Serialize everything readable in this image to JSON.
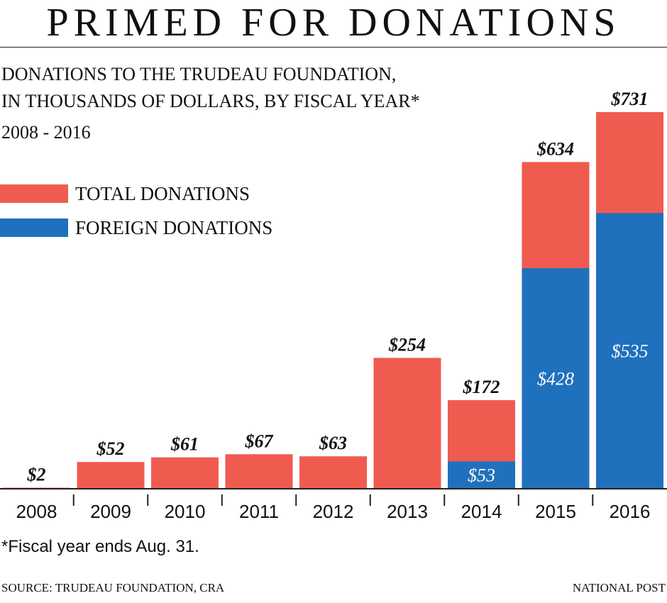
{
  "headline": "PRIMED FOR DONATIONS",
  "subtitle": {
    "line1": "DONATIONS TO THE TRUDEAU FOUNDATION,",
    "line2": "IN THOUSANDS OF DOLLARS, BY FISCAL YEAR*",
    "line3": "2008 - 2016"
  },
  "legend": {
    "total_label": "TOTAL DONATIONS",
    "foreign_label": "FOREIGN DONATIONS"
  },
  "colors": {
    "total": "#f05b50",
    "foreign": "#1f70bd",
    "axis": "#222222"
  },
  "note": "*Fiscal year ends Aug. 31.",
  "source": "SOURCE: TRUDEAU FOUNDATION, CRA",
  "credit": "NATIONAL POST",
  "chart_data": {
    "type": "bar",
    "stacking": "overlay",
    "title": "PRIMED FOR DONATIONS",
    "categories": [
      "2008",
      "2009",
      "2010",
      "2011",
      "2012",
      "2013",
      "2014",
      "2015",
      "2016"
    ],
    "series": [
      {
        "name": "TOTAL DONATIONS",
        "values": [
          2,
          52,
          61,
          67,
          63,
          254,
          172,
          634,
          731
        ],
        "labels": [
          "$2",
          "$52",
          "$61",
          "$67",
          "$63",
          "$254",
          "$172",
          "$634",
          "$731"
        ]
      },
      {
        "name": "FOREIGN DONATIONS",
        "values": [
          null,
          null,
          null,
          null,
          null,
          null,
          53,
          428,
          535
        ],
        "labels": [
          "",
          "",
          "",
          "",
          "",
          "",
          "$53",
          "$428",
          "$535"
        ]
      }
    ],
    "ylim": [
      0,
      731
    ],
    "grid": false,
    "legend_position": "top-left"
  }
}
